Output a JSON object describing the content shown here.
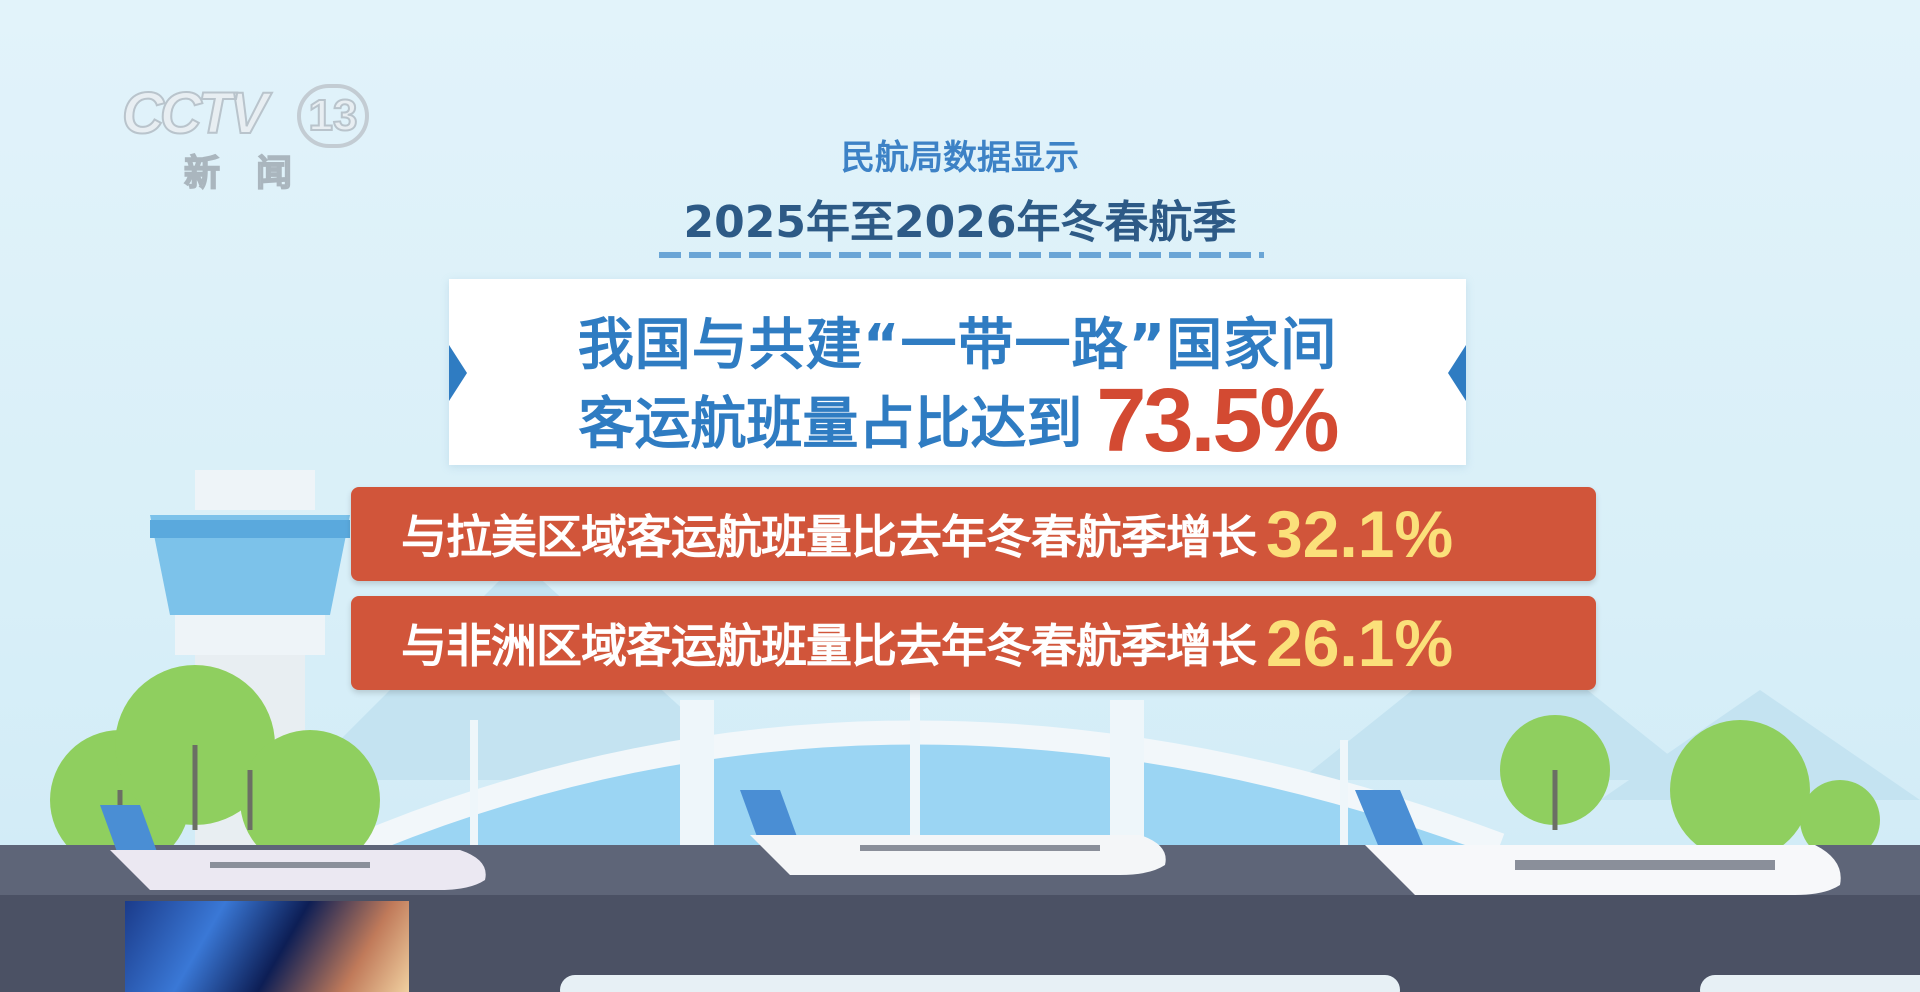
{
  "logo": {
    "brand": "CCTV",
    "channel": "13",
    "name": "新闻"
  },
  "header": {
    "subtitle": "民航局数据显示",
    "title": "2025年至2026年冬春航季"
  },
  "highlight": {
    "line1": "我国与共建“一带一路”国家间",
    "line2": "客运航班量占比达到",
    "value": "73.5%"
  },
  "stats": [
    {
      "label": "与拉美区域客运航班量比去年冬春航季增长",
      "value": "32.1%"
    },
    {
      "label": "与非洲区域客运航班量比去年冬春航季增长",
      "value": "26.1%"
    }
  ],
  "colors": {
    "background": "#dff1f8",
    "accent_blue": "#2f7cc2",
    "highlight_red": "#d34a32",
    "bar_red": "#d1553a",
    "value_yellow": "#fbe07a"
  }
}
